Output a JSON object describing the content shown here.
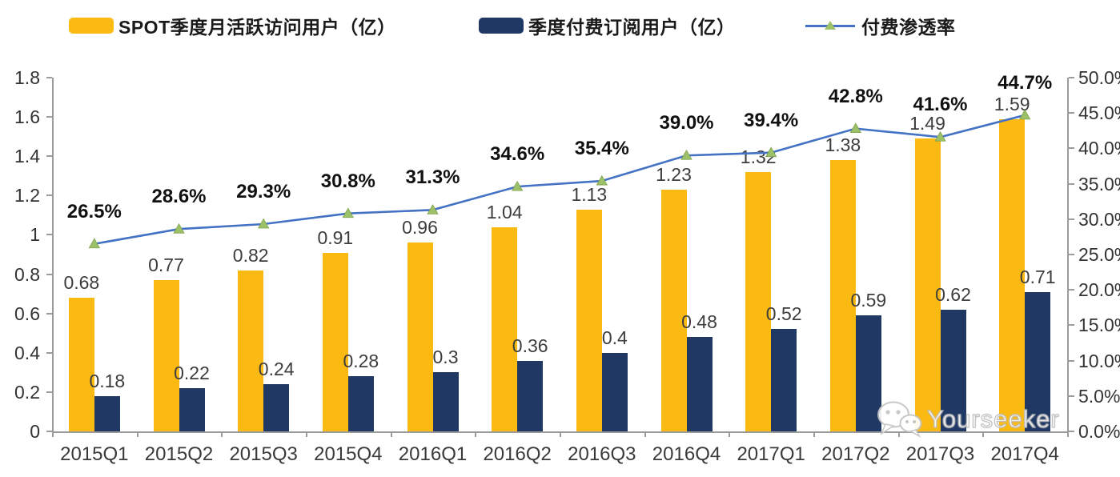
{
  "legend": [
    {
      "label": "SPOT季度月活跃访问用户（亿）",
      "color": "#FBBA12"
    },
    {
      "label": "季度付费订阅用户（亿）",
      "color": "#1F3864"
    },
    {
      "label": "付费渗透率",
      "line_color": "#4472C4",
      "marker_color": "#9CC168"
    }
  ],
  "watermark": {
    "text": "Yourseeker"
  },
  "chart_data": {
    "type": "bar",
    "subtype": "grouped bars with secondary-axis line",
    "categories": [
      "2015Q1",
      "2015Q2",
      "2015Q3",
      "2015Q4",
      "2016Q1",
      "2016Q2",
      "2016Q3",
      "2016Q4",
      "2017Q1",
      "2017Q2",
      "2017Q3",
      "2017Q4"
    ],
    "series": [
      {
        "name": "SPOT季度月活跃访问用户（亿）",
        "type": "bar",
        "axis": "left",
        "color": "#FBBA12",
        "values": [
          0.68,
          0.77,
          0.82,
          0.91,
          0.96,
          1.04,
          1.13,
          1.23,
          1.32,
          1.38,
          1.49,
          1.59
        ],
        "labels": [
          "0.68",
          "0.77",
          "0.82",
          "0.91",
          "0.96",
          "1.04",
          "1.13",
          "1.23",
          "1.32",
          "1.38",
          "1.49",
          "1.59"
        ]
      },
      {
        "name": "季度付费订阅用户（亿）",
        "type": "bar",
        "axis": "left",
        "color": "#1F3864",
        "values": [
          0.18,
          0.22,
          0.24,
          0.28,
          0.3,
          0.36,
          0.4,
          0.48,
          0.52,
          0.59,
          0.62,
          0.71
        ],
        "labels": [
          "0.18",
          "0.22",
          "0.24",
          "0.28",
          "0.3",
          "0.36",
          "0.4",
          "0.48",
          "0.52",
          "0.59",
          "0.62",
          "0.71"
        ]
      },
      {
        "name": "付费渗透率",
        "type": "line",
        "axis": "right",
        "color": "#4472C4",
        "marker": "triangle",
        "marker_color": "#9CC168",
        "values": [
          26.5,
          28.6,
          29.3,
          30.8,
          31.3,
          34.6,
          35.4,
          39.0,
          39.4,
          42.8,
          41.6,
          44.7
        ],
        "labels": [
          "26.5%",
          "28.6%",
          "29.3%",
          "30.8%",
          "31.3%",
          "34.6%",
          "35.4%",
          "39.0%",
          "39.4%",
          "42.8%",
          "41.6%",
          "44.7%"
        ]
      }
    ],
    "left_axis": {
      "min": 0,
      "max": 1.8,
      "step": 0.2,
      "ticks": [
        "1.8",
        "1.6",
        "1.4",
        "1.2",
        "1",
        "0.8",
        "0.6",
        "0.4",
        "0.2",
        "0"
      ]
    },
    "right_axis": {
      "min": 0,
      "max": 50,
      "step": 5,
      "ticks": [
        "50.0%",
        "45.0%",
        "40.0%",
        "35.0%",
        "30.0%",
        "25.0%",
        "20.0%",
        "15.0%",
        "10.0%",
        "5.0%",
        "0.0%"
      ]
    },
    "grid": false,
    "legend_position": "top",
    "title": ""
  }
}
